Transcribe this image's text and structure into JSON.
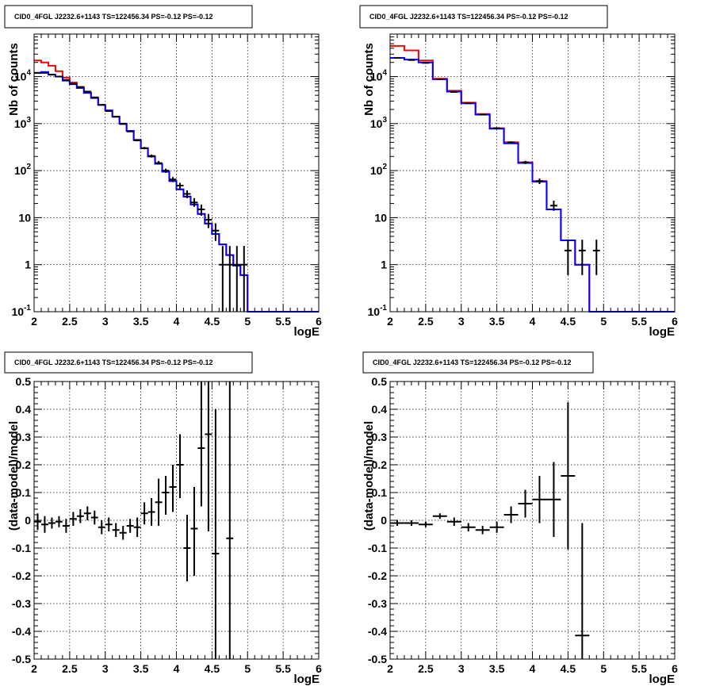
{
  "chart_data": [
    {
      "type": "line",
      "title": "CID0_4FGL J2232.6+1143 TS=122456.34 PS=-0.12 PS=-0.12",
      "xlabel": "logE",
      "ylabel": "Nb of counts",
      "xlim": [
        2,
        6
      ],
      "ylim": [
        0.1,
        80000
      ],
      "log_y": true,
      "grid": true,
      "x_ticks": [
        "2",
        "2.5",
        "3",
        "3.5",
        "4",
        "4.5",
        "5",
        "5.5",
        "6"
      ],
      "y_ticks": [
        {
          "value": 0.1,
          "label": "10",
          "exp": "-1"
        },
        {
          "value": 1,
          "label": "1",
          "exp": ""
        },
        {
          "value": 10,
          "label": "10",
          "exp": ""
        },
        {
          "value": 100,
          "label": "10",
          "exp": "2"
        },
        {
          "value": 1000,
          "label": "10",
          "exp": "3"
        },
        {
          "value": 10000,
          "label": "10",
          "exp": "4"
        }
      ],
      "bin_edges": [
        2.0,
        2.1,
        2.2,
        2.3,
        2.4,
        2.5,
        2.6,
        2.7,
        2.8,
        2.9,
        3.0,
        3.1,
        3.2,
        3.3,
        3.4,
        3.5,
        3.6,
        3.7,
        3.8,
        3.9,
        4.0,
        4.1,
        4.2,
        4.3,
        4.4,
        4.5,
        4.6,
        4.7,
        4.8,
        4.9,
        5.0,
        5.1,
        5.2,
        5.3,
        5.4,
        5.5,
        5.6,
        5.7,
        5.8,
        5.9,
        6.0
      ],
      "series": [
        {
          "color": "#ff0000",
          "style": "step",
          "values": [
            22000,
            20000,
            17000,
            13000,
            9500,
            7500,
            6000,
            4600,
            3600,
            2500,
            1900,
            1400,
            1000,
            700,
            450,
            300,
            200,
            140,
            95,
            60,
            40,
            28,
            19,
            12,
            7.5,
            4.5,
            2.7,
            1.6,
            0.95,
            0.6,
            0.1,
            0.1,
            0.1,
            0.1,
            0.1,
            0.1,
            0.1,
            0.1,
            0.1,
            0.1
          ]
        },
        {
          "color": "#0000ff",
          "style": "step",
          "values": [
            12000,
            12500,
            11000,
            10000,
            8200,
            6900,
            5700,
            4500,
            3500,
            2500,
            1900,
            1400,
            1000,
            700,
            450,
            300,
            200,
            140,
            95,
            60,
            40,
            28,
            19,
            12,
            7.5,
            4.5,
            2.7,
            1.6,
            0.95,
            0.6,
            0.1,
            0.1,
            0.1,
            0.1,
            0.1,
            0.1,
            0.1,
            0.1,
            0.1,
            0.1
          ]
        },
        {
          "color": "#000000",
          "style": "errorbar",
          "x": [
            2.05,
            2.15,
            2.25,
            2.35,
            2.45,
            2.55,
            2.65,
            2.75,
            2.85,
            2.95,
            3.05,
            3.15,
            3.25,
            3.35,
            3.45,
            3.55,
            3.65,
            3.75,
            3.85,
            3.95,
            4.05,
            4.15,
            4.25,
            4.35,
            4.45,
            4.55,
            4.65,
            4.75,
            4.85,
            4.95
          ],
          "y": [
            12000,
            12000,
            11000,
            10000,
            8500,
            7000,
            6000,
            4800,
            3600,
            2500,
            1850,
            1400,
            980,
            680,
            440,
            300,
            205,
            145,
            100,
            65,
            48,
            32,
            21,
            15,
            9,
            5.3,
            1.0,
            1.0,
            1.0,
            1.0
          ],
          "ylow": [
            11900,
            11900,
            10900,
            9900,
            8400,
            6900,
            5900,
            4730,
            3540,
            2450,
            1810,
            1360,
            950,
            660,
            420,
            285,
            190,
            135,
            90,
            57,
            41,
            26,
            17,
            11,
            6,
            3.2,
            0.1,
            0.1,
            0.1,
            0.1
          ],
          "yhigh": [
            12100,
            12100,
            11100,
            10100,
            8600,
            7100,
            6080,
            4870,
            3660,
            2550,
            1890,
            1440,
            1010,
            710,
            460,
            320,
            220,
            160,
            110,
            73,
            55,
            38,
            26,
            19,
            12,
            7.6,
            2.5,
            2.5,
            2.5,
            2.5
          ]
        }
      ]
    },
    {
      "type": "line",
      "title": "CID0_4FGL J2232.6+1143 TS=122456.34 PS=-0.12 PS=-0.12",
      "xlabel": "logE",
      "ylabel": "Nb of counts",
      "xlim": [
        2,
        6
      ],
      "ylim": [
        0.1,
        80000
      ],
      "log_y": true,
      "grid": true,
      "x_ticks": [
        "2",
        "2.5",
        "3",
        "3.5",
        "4",
        "4.5",
        "5",
        "5.5",
        "6"
      ],
      "y_ticks": [
        {
          "value": 0.1,
          "label": "10",
          "exp": "-1"
        },
        {
          "value": 1,
          "label": "1",
          "exp": ""
        },
        {
          "value": 10,
          "label": "10",
          "exp": ""
        },
        {
          "value": 100,
          "label": "10",
          "exp": "2"
        },
        {
          "value": 1000,
          "label": "10",
          "exp": "3"
        },
        {
          "value": 10000,
          "label": "10",
          "exp": "4"
        }
      ],
      "bin_edges": [
        2.0,
        2.2,
        2.4,
        2.6,
        2.8,
        3.0,
        3.2,
        3.4,
        3.6,
        3.8,
        4.0,
        4.2,
        4.4,
        4.6,
        4.8,
        5.0,
        5.2,
        5.4,
        5.6,
        5.8,
        6.0
      ],
      "series": [
        {
          "color": "#ff0000",
          "style": "step",
          "values": [
            45000,
            36000,
            22000,
            9000,
            5000,
            2800,
            1600,
            800,
            400,
            150,
            60,
            15,
            3.3,
            1.0,
            0.1,
            0.1,
            0.1,
            0.1,
            0.1,
            0.1
          ]
        },
        {
          "color": "#0000ff",
          "style": "step",
          "values": [
            25000,
            23000,
            20000,
            8800,
            4800,
            2700,
            1550,
            780,
            380,
            145,
            58,
            15,
            3.3,
            1.0,
            0.1,
            0.1,
            0.1,
            0.1,
            0.1,
            0.1
          ]
        },
        {
          "color": "#000000",
          "style": "errorbar",
          "x": [
            2.1,
            2.3,
            2.5,
            2.7,
            2.9,
            3.1,
            3.3,
            3.5,
            3.7,
            3.9,
            4.1,
            4.3,
            4.5,
            4.7,
            4.9
          ],
          "y": [
            25000,
            22500,
            19500,
            8800,
            4700,
            2700,
            1550,
            800,
            400,
            150,
            60,
            18,
            2.0,
            2.0,
            2.0
          ],
          "ylow": [
            24800,
            22300,
            19300,
            8700,
            4630,
            2650,
            1510,
            770,
            380,
            138,
            52,
            14,
            0.6,
            0.6,
            0.6
          ],
          "yhigh": [
            25200,
            22700,
            19700,
            8900,
            4770,
            2750,
            1590,
            830,
            420,
            162,
            68,
            23,
            3.4,
            3.4,
            3.4
          ]
        }
      ]
    },
    {
      "type": "scatter",
      "title": "CID0_4FGL J2232.6+1143 TS=122456.34 PS=-0.12 PS=-0.12",
      "xlabel": "logE",
      "ylabel": "(data-model)/model",
      "xlim": [
        2,
        6
      ],
      "ylim": [
        -0.5,
        0.5
      ],
      "log_y": false,
      "grid": true,
      "x_ticks": [
        "2",
        "2.5",
        "3",
        "3.5",
        "4",
        "4.5",
        "5",
        "5.5",
        "6"
      ],
      "y_ticks": [
        {
          "value": -0.5,
          "label": "-0.5"
        },
        {
          "value": -0.4,
          "label": "-0.4"
        },
        {
          "value": -0.3,
          "label": "-0.3"
        },
        {
          "value": -0.2,
          "label": "-0.2"
        },
        {
          "value": -0.1,
          "label": "-0.1"
        },
        {
          "value": 0,
          "label": "0"
        },
        {
          "value": 0.1,
          "label": "0.1"
        },
        {
          "value": 0.2,
          "label": "0.2"
        },
        {
          "value": 0.3,
          "label": "0.3"
        },
        {
          "value": 0.4,
          "label": "0.4"
        },
        {
          "value": 0.5,
          "label": "0.5"
        }
      ],
      "series": [
        {
          "color": "#000000",
          "style": "errorbar",
          "xerr": 0.05,
          "x": [
            2.05,
            2.15,
            2.25,
            2.35,
            2.45,
            2.55,
            2.65,
            2.75,
            2.85,
            2.95,
            3.05,
            3.15,
            3.25,
            3.35,
            3.45,
            3.55,
            3.65,
            3.75,
            3.85,
            3.95,
            4.05,
            4.15,
            4.25,
            4.35,
            4.45,
            4.55,
            4.75
          ],
          "y": [
            -0.005,
            -0.015,
            -0.01,
            -0.005,
            -0.02,
            0.005,
            0.015,
            0.025,
            0.01,
            -0.025,
            -0.015,
            -0.035,
            -0.045,
            -0.02,
            -0.025,
            0.025,
            0.03,
            0.065,
            0.1,
            0.12,
            0.2,
            -0.1,
            -0.03,
            0.26,
            0.31,
            -0.12,
            -0.065
          ],
          "ylow": [
            -0.035,
            -0.045,
            -0.03,
            -0.025,
            -0.045,
            -0.02,
            -0.01,
            0.0,
            -0.015,
            -0.05,
            -0.04,
            -0.06,
            -0.07,
            -0.045,
            -0.06,
            -0.015,
            -0.02,
            -0.02,
            0.02,
            0.03,
            0.08,
            -0.22,
            -0.2,
            0.05,
            -0.04,
            -0.5,
            -0.5
          ],
          "yhigh": [
            0.025,
            0.015,
            0.01,
            0.015,
            0.005,
            0.03,
            0.04,
            0.05,
            0.035,
            0.0,
            0.01,
            -0.01,
            -0.02,
            0.005,
            0.01,
            0.065,
            0.08,
            0.15,
            0.16,
            0.2,
            0.31,
            0.02,
            0.12,
            0.5,
            0.5,
            0.4,
            0.5
          ]
        }
      ]
    },
    {
      "type": "scatter",
      "title": "CID0_4FGL J2232.6+1143 TS=122456.34 PS=-0.12 PS=-0.12",
      "xlabel": "logE",
      "ylabel": "(data-model)/model",
      "xlim": [
        2,
        6
      ],
      "ylim": [
        -0.5,
        0.5
      ],
      "log_y": false,
      "grid": true,
      "x_ticks": [
        "2",
        "2.5",
        "3",
        "3.5",
        "4",
        "4.5",
        "5",
        "5.5",
        "6"
      ],
      "y_ticks": [
        {
          "value": -0.5,
          "label": "-0.5"
        },
        {
          "value": -0.4,
          "label": "-0.4"
        },
        {
          "value": -0.3,
          "label": "-0.3"
        },
        {
          "value": -0.2,
          "label": "-0.2"
        },
        {
          "value": -0.1,
          "label": "-0.1"
        },
        {
          "value": 0,
          "label": "0"
        },
        {
          "value": 0.1,
          "label": "0.1"
        },
        {
          "value": 0.2,
          "label": "0.2"
        },
        {
          "value": 0.3,
          "label": "0.3"
        },
        {
          "value": 0.4,
          "label": "0.4"
        },
        {
          "value": 0.5,
          "label": "0.5"
        }
      ],
      "series": [
        {
          "color": "#000000",
          "style": "errorbar",
          "xerr": 0.1,
          "x": [
            2.1,
            2.3,
            2.5,
            2.7,
            2.9,
            3.1,
            3.3,
            3.5,
            3.7,
            3.9,
            4.1,
            4.3,
            4.5,
            4.7
          ],
          "y": [
            -0.01,
            -0.01,
            -0.015,
            0.015,
            -0.005,
            -0.025,
            -0.035,
            -0.025,
            0.02,
            0.06,
            0.075,
            0.075,
            0.16,
            -0.415
          ],
          "ylow": [
            -0.02,
            -0.02,
            -0.025,
            0.005,
            -0.02,
            -0.04,
            -0.05,
            -0.045,
            -0.01,
            0.01,
            -0.01,
            -0.06,
            -0.105,
            -0.5
          ],
          "yhigh": [
            0.0,
            0.0,
            -0.005,
            0.025,
            0.01,
            -0.01,
            -0.02,
            -0.005,
            0.05,
            0.11,
            0.16,
            0.21,
            0.425,
            -0.01
          ]
        }
      ]
    }
  ]
}
